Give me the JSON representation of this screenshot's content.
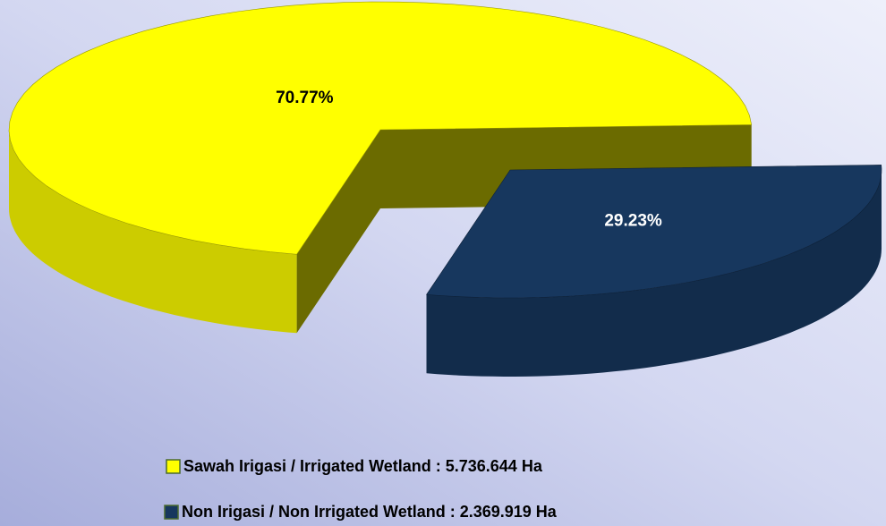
{
  "chart_data": {
    "type": "pie",
    "categories": [
      "Sawah Irigasi / Irrigated Wetland : 5.736.644 Ha",
      "Non Irigasi / Non Irrigated Wetland : 2.369.919 Ha"
    ],
    "values": [
      70.77,
      29.23
    ],
    "value_labels": [
      "70.77%",
      "29.23%"
    ],
    "colors": [
      "#ffff00",
      "#17375e"
    ],
    "legend": "bottom"
  }
}
